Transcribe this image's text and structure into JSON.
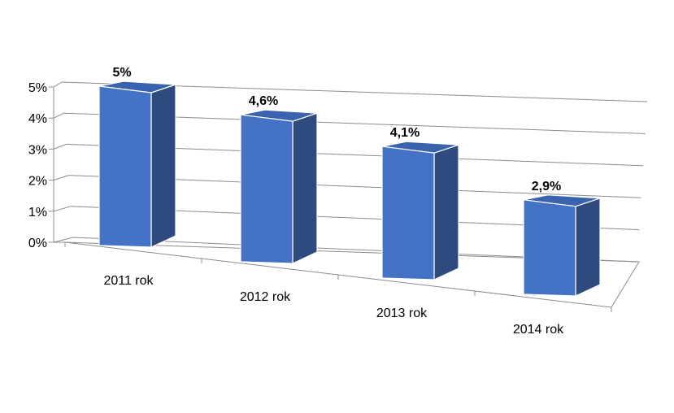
{
  "chart_data": {
    "type": "bar",
    "title": "",
    "xlabel": "",
    "ylabel": "",
    "categories": [
      "2011 rok",
      "2012 rok",
      "2013 rok",
      "2014 rok"
    ],
    "values": [
      5,
      4.6,
      4.1,
      2.9
    ],
    "data_labels": [
      "5%",
      "4,6%",
      "4,1%",
      "2,9%"
    ],
    "ylim": [
      0,
      5
    ],
    "yticks": [
      0,
      1,
      2,
      3,
      4,
      5
    ],
    "ytick_labels": [
      "0%",
      "1%",
      "2%",
      "3%",
      "4%",
      "5%"
    ],
    "grid": true,
    "legend": "none",
    "style": "3d-column",
    "colors": {
      "bar_front": "#4472C4",
      "bar_side": "#2E4A7F",
      "bar_top": "#3A63AE",
      "bar_edge": "#ffffff",
      "grid": "#8C8C8C"
    }
  }
}
